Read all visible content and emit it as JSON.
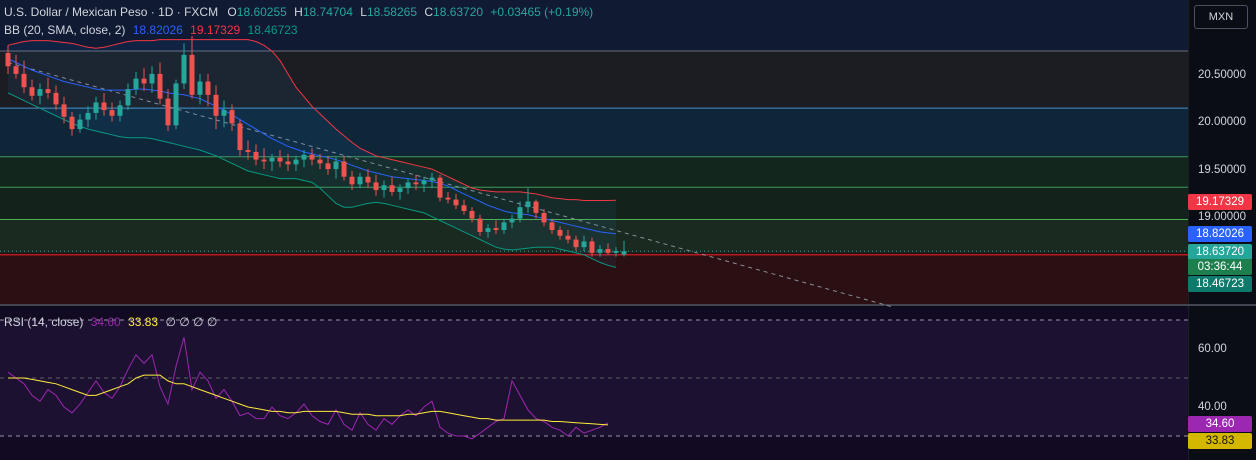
{
  "header": {
    "symbol_name": "U.S. Dollar / Mexican Peso",
    "sep1": " · ",
    "interval": "1D",
    "sep2": " · ",
    "source": "FXCM",
    "open_label": "O",
    "open": "18.60255",
    "high_label": "H",
    "high": "18.74704",
    "low_label": "L",
    "low": "18.58265",
    "close_label": "C",
    "close": "18.63720",
    "change": "+0.03465 (+0.19%)"
  },
  "bb_legend": {
    "label": "BB (20, SMA, close, 2)",
    "basis": "18.82026",
    "upper": "19.17329",
    "lower": "18.46723"
  },
  "rsi_legend": {
    "label": "RSI (14, close)",
    "rsi": "34.60",
    "ma": "33.83",
    "extra": "∅ ∅ ∅ ∅"
  },
  "currency_button": "MXN",
  "price_axis": {
    "ticks": [
      "20.50000",
      "20.00000",
      "19.50000",
      "19.00000"
    ],
    "badges": {
      "upper": "19.17329",
      "basis": "18.82026",
      "last": "18.63720",
      "countdown": "03:36:44",
      "lower": "18.46723"
    }
  },
  "rsi_axis": {
    "ticks": [
      "60.00",
      "40.00"
    ],
    "badges": {
      "rsi": "34.60",
      "ma": "33.83"
    }
  },
  "colors": {
    "up": "#26a69a",
    "down": "#ef5350",
    "bb_basis": "#2962ff",
    "bb_upper": "#f23645",
    "bb_lower": "#089981",
    "rsi": "#9c27b0",
    "rsi_ma": "#ffeb3b",
    "countdown_bg": "#1e7f4e",
    "lower_badge_bg": "#0e7a6b"
  },
  "chart_data": [
    {
      "type": "candlestick",
      "title": "U.S. Dollar / Mexican Peso · 1D · FXCM",
      "y_range": [
        18.0,
        20.85
      ],
      "horizontal_levels": [
        20.74,
        20.14,
        19.63,
        19.31,
        18.97
      ],
      "candles": [
        {
          "o": 20.72,
          "h": 20.8,
          "l": 20.5,
          "c": 20.58
        },
        {
          "o": 20.58,
          "h": 20.7,
          "l": 20.45,
          "c": 20.5
        },
        {
          "o": 20.5,
          "h": 20.64,
          "l": 20.3,
          "c": 20.36
        },
        {
          "o": 20.36,
          "h": 20.44,
          "l": 20.22,
          "c": 20.27
        },
        {
          "o": 20.27,
          "h": 20.4,
          "l": 20.18,
          "c": 20.34
        },
        {
          "o": 20.34,
          "h": 20.46,
          "l": 20.24,
          "c": 20.3
        },
        {
          "o": 20.3,
          "h": 20.38,
          "l": 20.12,
          "c": 20.18
        },
        {
          "o": 20.18,
          "h": 20.26,
          "l": 19.98,
          "c": 20.05
        },
        {
          "o": 20.05,
          "h": 20.1,
          "l": 19.85,
          "c": 19.92
        },
        {
          "o": 19.92,
          "h": 20.08,
          "l": 19.88,
          "c": 20.02
        },
        {
          "o": 20.02,
          "h": 20.16,
          "l": 19.94,
          "c": 20.09
        },
        {
          "o": 20.09,
          "h": 20.26,
          "l": 20.02,
          "c": 20.2
        },
        {
          "o": 20.2,
          "h": 20.3,
          "l": 20.06,
          "c": 20.12
        },
        {
          "o": 20.12,
          "h": 20.2,
          "l": 20.0,
          "c": 20.06
        },
        {
          "o": 20.06,
          "h": 20.22,
          "l": 20.0,
          "c": 20.17
        },
        {
          "o": 20.17,
          "h": 20.4,
          "l": 20.12,
          "c": 20.34
        },
        {
          "o": 20.34,
          "h": 20.52,
          "l": 20.28,
          "c": 20.45
        },
        {
          "o": 20.45,
          "h": 20.56,
          "l": 20.32,
          "c": 20.4
        },
        {
          "o": 20.4,
          "h": 20.58,
          "l": 20.3,
          "c": 20.5
        },
        {
          "o": 20.5,
          "h": 20.62,
          "l": 20.18,
          "c": 20.24
        },
        {
          "o": 20.24,
          "h": 20.34,
          "l": 19.9,
          "c": 19.96
        },
        {
          "o": 19.96,
          "h": 20.44,
          "l": 19.92,
          "c": 20.4
        },
        {
          "o": 20.4,
          "h": 20.82,
          "l": 20.34,
          "c": 20.7
        },
        {
          "o": 20.7,
          "h": 20.9,
          "l": 20.24,
          "c": 20.28
        },
        {
          "o": 20.28,
          "h": 20.5,
          "l": 20.18,
          "c": 20.42
        },
        {
          "o": 20.42,
          "h": 20.5,
          "l": 20.16,
          "c": 20.28
        },
        {
          "o": 20.28,
          "h": 20.38,
          "l": 19.92,
          "c": 20.06
        },
        {
          "o": 20.06,
          "h": 20.22,
          "l": 19.94,
          "c": 20.12
        },
        {
          "o": 20.12,
          "h": 20.18,
          "l": 19.9,
          "c": 19.98
        },
        {
          "o": 19.98,
          "h": 20.02,
          "l": 19.64,
          "c": 19.7
        },
        {
          "o": 19.7,
          "h": 19.8,
          "l": 19.6,
          "c": 19.68
        },
        {
          "o": 19.68,
          "h": 19.76,
          "l": 19.54,
          "c": 19.6
        },
        {
          "o": 19.6,
          "h": 19.72,
          "l": 19.5,
          "c": 19.58
        },
        {
          "o": 19.58,
          "h": 19.66,
          "l": 19.48,
          "c": 19.62
        },
        {
          "o": 19.62,
          "h": 19.7,
          "l": 19.52,
          "c": 19.58
        },
        {
          "o": 19.58,
          "h": 19.66,
          "l": 19.48,
          "c": 19.55
        },
        {
          "o": 19.55,
          "h": 19.64,
          "l": 19.48,
          "c": 19.6
        },
        {
          "o": 19.6,
          "h": 19.7,
          "l": 19.52,
          "c": 19.65
        },
        {
          "o": 19.65,
          "h": 19.72,
          "l": 19.54,
          "c": 19.6
        },
        {
          "o": 19.6,
          "h": 19.66,
          "l": 19.5,
          "c": 19.56
        },
        {
          "o": 19.56,
          "h": 19.64,
          "l": 19.44,
          "c": 19.5
        },
        {
          "o": 19.5,
          "h": 19.62,
          "l": 19.4,
          "c": 19.58
        },
        {
          "o": 19.58,
          "h": 19.64,
          "l": 19.38,
          "c": 19.42
        },
        {
          "o": 19.42,
          "h": 19.48,
          "l": 19.28,
          "c": 19.34
        },
        {
          "o": 19.34,
          "h": 19.46,
          "l": 19.3,
          "c": 19.42
        },
        {
          "o": 19.42,
          "h": 19.5,
          "l": 19.3,
          "c": 19.36
        },
        {
          "o": 19.36,
          "h": 19.44,
          "l": 19.22,
          "c": 19.28
        },
        {
          "o": 19.28,
          "h": 19.38,
          "l": 19.2,
          "c": 19.33
        },
        {
          "o": 19.33,
          "h": 19.42,
          "l": 19.22,
          "c": 19.26
        },
        {
          "o": 19.26,
          "h": 19.34,
          "l": 19.18,
          "c": 19.3
        },
        {
          "o": 19.3,
          "h": 19.4,
          "l": 19.24,
          "c": 19.36
        },
        {
          "o": 19.36,
          "h": 19.44,
          "l": 19.28,
          "c": 19.34
        },
        {
          "o": 19.34,
          "h": 19.42,
          "l": 19.26,
          "c": 19.38
        },
        {
          "o": 19.38,
          "h": 19.46,
          "l": 19.3,
          "c": 19.41
        },
        {
          "o": 19.41,
          "h": 19.44,
          "l": 19.16,
          "c": 19.2
        },
        {
          "o": 19.2,
          "h": 19.26,
          "l": 19.14,
          "c": 19.18
        },
        {
          "o": 19.18,
          "h": 19.24,
          "l": 19.08,
          "c": 19.12
        },
        {
          "o": 19.12,
          "h": 19.18,
          "l": 19.02,
          "c": 19.06
        },
        {
          "o": 19.06,
          "h": 19.1,
          "l": 18.94,
          "c": 18.98
        },
        {
          "o": 18.98,
          "h": 19.02,
          "l": 18.8,
          "c": 18.84
        },
        {
          "o": 18.84,
          "h": 18.92,
          "l": 18.78,
          "c": 18.88
        },
        {
          "o": 18.88,
          "h": 18.96,
          "l": 18.82,
          "c": 18.86
        },
        {
          "o": 18.86,
          "h": 18.98,
          "l": 18.82,
          "c": 18.94
        },
        {
          "o": 18.94,
          "h": 19.02,
          "l": 18.88,
          "c": 18.98
        },
        {
          "o": 18.98,
          "h": 19.16,
          "l": 18.94,
          "c": 19.1
        },
        {
          "o": 19.1,
          "h": 19.3,
          "l": 19.04,
          "c": 19.16
        },
        {
          "o": 19.16,
          "h": 19.18,
          "l": 18.98,
          "c": 19.04
        },
        {
          "o": 19.04,
          "h": 19.08,
          "l": 18.9,
          "c": 18.94
        },
        {
          "o": 18.94,
          "h": 18.98,
          "l": 18.82,
          "c": 18.86
        },
        {
          "o": 18.86,
          "h": 18.9,
          "l": 18.76,
          "c": 18.8
        },
        {
          "o": 18.8,
          "h": 18.86,
          "l": 18.72,
          "c": 18.76
        },
        {
          "o": 18.76,
          "h": 18.8,
          "l": 18.64,
          "c": 18.68
        },
        {
          "o": 18.68,
          "h": 18.8,
          "l": 18.64,
          "c": 18.74
        },
        {
          "o": 18.74,
          "h": 18.78,
          "l": 18.58,
          "c": 18.62
        },
        {
          "o": 18.62,
          "h": 18.7,
          "l": 18.58,
          "c": 18.66
        },
        {
          "o": 18.66,
          "h": 18.72,
          "l": 18.6,
          "c": 18.62
        },
        {
          "o": 18.62,
          "h": 18.68,
          "l": 18.58,
          "c": 18.64
        },
        {
          "o": 18.60255,
          "h": 18.74704,
          "l": 18.58265,
          "c": 18.6372
        }
      ],
      "bollinger": {
        "upper": [
          20.8,
          20.82,
          20.84,
          20.85,
          20.85,
          20.85,
          20.84,
          20.83,
          20.82,
          20.8,
          20.78,
          20.77,
          20.78,
          20.8,
          20.82,
          20.84,
          20.85,
          20.85,
          20.85,
          20.86,
          20.86,
          20.86,
          20.86,
          20.86,
          20.86,
          20.86,
          20.86,
          20.86,
          20.86,
          20.86,
          20.86,
          20.84,
          20.8,
          20.74,
          20.64,
          20.5,
          20.36,
          20.26,
          20.16,
          20.08,
          20.0,
          19.92,
          19.85,
          19.78,
          19.72,
          19.68,
          19.64,
          19.62,
          19.6,
          19.58,
          19.56,
          19.54,
          19.52,
          19.5,
          19.46,
          19.42,
          19.38,
          19.34,
          19.3,
          19.28,
          19.27,
          19.26,
          19.26,
          19.26,
          19.26,
          19.25,
          19.24,
          19.22,
          19.2,
          19.19,
          19.18,
          19.18,
          19.17,
          19.17,
          19.17,
          19.17,
          19.17329
        ],
        "basis": [
          20.66,
          20.62,
          20.58,
          20.54,
          20.51,
          20.48,
          20.45,
          20.42,
          20.4,
          20.38,
          20.36,
          20.34,
          20.33,
          20.33,
          20.33,
          20.33,
          20.34,
          20.34,
          20.33,
          20.32,
          20.3,
          20.29,
          20.28,
          20.26,
          20.24,
          20.2,
          20.16,
          20.12,
          20.07,
          20.02,
          19.97,
          19.92,
          19.87,
          19.82,
          19.78,
          19.74,
          19.71,
          19.68,
          19.66,
          19.64,
          19.62,
          19.6,
          19.57,
          19.54,
          19.51,
          19.48,
          19.46,
          19.44,
          19.42,
          19.41,
          19.4,
          19.39,
          19.38,
          19.37,
          19.35,
          19.32,
          19.28,
          19.24,
          19.2,
          19.16,
          19.12,
          19.09,
          19.06,
          19.04,
          19.03,
          19.02,
          19.0,
          18.98,
          18.96,
          18.94,
          18.92,
          18.9,
          18.88,
          18.86,
          18.84,
          18.83,
          18.82026
        ],
        "lower": [
          20.3,
          20.26,
          20.22,
          20.18,
          20.14,
          20.1,
          20.06,
          20.02,
          19.98,
          19.95,
          19.92,
          19.9,
          19.88,
          19.86,
          19.84,
          19.83,
          19.83,
          19.83,
          19.82,
          19.8,
          19.78,
          19.76,
          19.74,
          19.72,
          19.7,
          19.67,
          19.64,
          19.6,
          19.56,
          19.52,
          19.48,
          19.46,
          19.44,
          19.42,
          19.4,
          19.4,
          19.4,
          19.38,
          19.36,
          19.3,
          19.22,
          19.14,
          19.1,
          19.1,
          19.12,
          19.14,
          19.15,
          19.14,
          19.12,
          19.1,
          19.08,
          19.06,
          19.04,
          19.0,
          18.96,
          18.92,
          18.88,
          18.84,
          18.8,
          18.76,
          18.72,
          18.68,
          18.66,
          18.65,
          18.66,
          18.67,
          18.68,
          18.68,
          18.68,
          18.66,
          18.64,
          18.62,
          18.6,
          18.56,
          18.52,
          18.49,
          18.46723
        ]
      }
    },
    {
      "type": "line",
      "title": "RSI (14, close)",
      "y_range": [
        30,
        68
      ],
      "levels": [
        70,
        50,
        30
      ],
      "series": [
        {
          "name": "RSI",
          "values": [
            52,
            50,
            48,
            44,
            42,
            46,
            44,
            40,
            38,
            41,
            45,
            49,
            45,
            43,
            47,
            53,
            58,
            55,
            58,
            47,
            41,
            54,
            64,
            46,
            52,
            49,
            43,
            46,
            42,
            37,
            38,
            36,
            36,
            40,
            37,
            36,
            38,
            41,
            37,
            35,
            34,
            39,
            34,
            32,
            38,
            34,
            32,
            36,
            34,
            37,
            39,
            37,
            40,
            42,
            33,
            31,
            30,
            30,
            29,
            31,
            33,
            35,
            36,
            49,
            44,
            39,
            36,
            35,
            33,
            32,
            30,
            33,
            31,
            32,
            33,
            34.6
          ]
        },
        {
          "name": "MA",
          "values": [
            50,
            50,
            50,
            49.5,
            49,
            48.5,
            48,
            47,
            46,
            45,
            44,
            44,
            45,
            46,
            47,
            48,
            50,
            51,
            51,
            51,
            49,
            48,
            48,
            47,
            46,
            45,
            44,
            43,
            42,
            41,
            40,
            39.5,
            39,
            38.5,
            38.5,
            38,
            38,
            38.5,
            38.5,
            38.5,
            38.5,
            38.5,
            38,
            37.5,
            37.5,
            37.5,
            37,
            37,
            37,
            37,
            37.5,
            37.5,
            38,
            38.5,
            38.5,
            38,
            37.5,
            37,
            36.5,
            36,
            36,
            35.5,
            35.5,
            35.5,
            35.5,
            35.5,
            35.5,
            35.5,
            35,
            35,
            34.8,
            34.6,
            34.4,
            34.2,
            34,
            33.83
          ]
        }
      ]
    }
  ]
}
